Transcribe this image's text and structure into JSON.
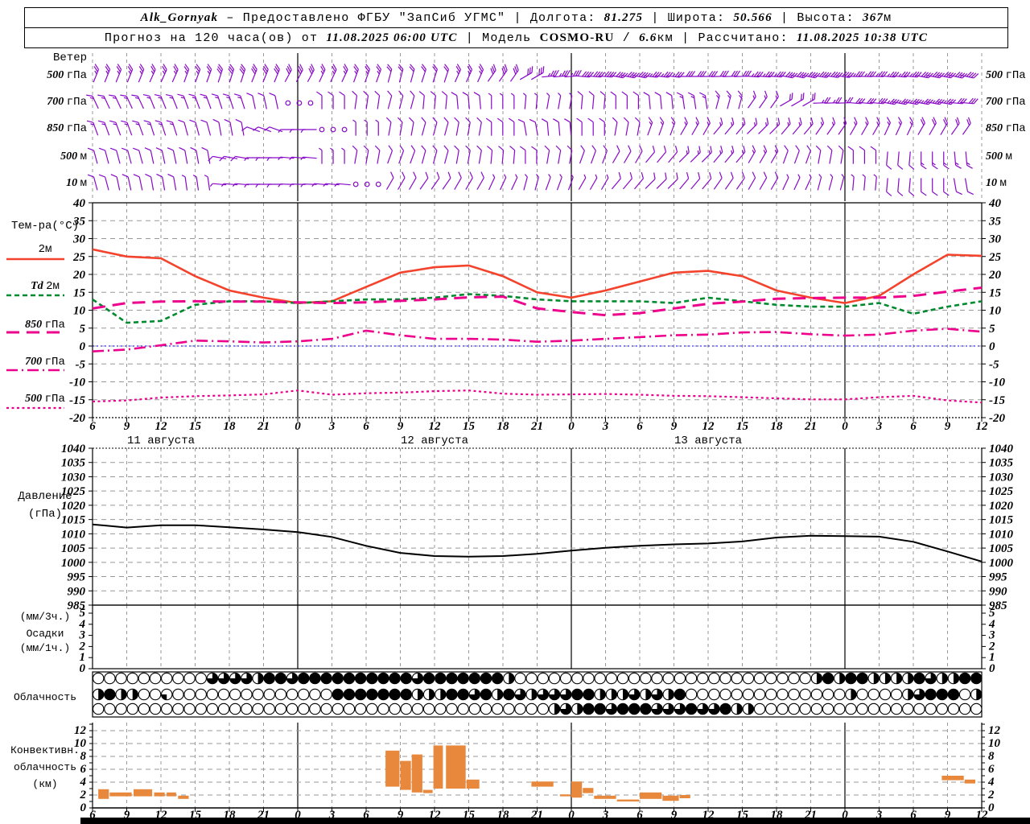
{
  "header": {
    "line1": [
      {
        "t": "Alk_Gornyak",
        "s": "v"
      },
      {
        "t": " – Предоставлено ФГБУ \"ЗапСиб УГМС\" | Долгота: "
      },
      {
        "t": "81.275",
        "s": "v"
      },
      {
        "t": " | Широта: "
      },
      {
        "t": "50.566",
        "s": "v"
      },
      {
        "t": " | Высота: "
      },
      {
        "t": "367",
        "s": "v"
      },
      {
        "t": "м"
      }
    ],
    "line2": [
      {
        "t": "Прогноз на 120 часа(ов) от "
      },
      {
        "t": "11.08.2025 06:00 UTC",
        "s": "v"
      },
      {
        "t": " | Модель "
      },
      {
        "t": "COSMO-RU",
        "s": "b"
      },
      {
        "t": " / "
      },
      {
        "t": "6.6",
        "s": "v"
      },
      {
        "t": "км | Рассчитано: "
      },
      {
        "t": "11.08.2025 10:38 UTC",
        "s": "v"
      }
    ]
  },
  "colors": {
    "wind_barb": "#8808c8",
    "temp_2m": "#f4432c",
    "dewpoint": "#008a2e",
    "magenta": "#ec008c",
    "zero_line": "#0000ff",
    "pressure_line": "#000000",
    "convective_bar": "#e8883c",
    "grid": "#999999"
  },
  "axis": {
    "hour_labels": [
      "6",
      "9",
      "12",
      "15",
      "18",
      "21",
      "0",
      "3",
      "6",
      "9",
      "12",
      "15",
      "18",
      "21",
      "0",
      "3",
      "6",
      "9",
      "12",
      "15",
      "18",
      "21",
      "0",
      "3",
      "6",
      "9",
      "12"
    ],
    "midnight_ticks": [
      6,
      14,
      22
    ],
    "day_labels": [
      {
        "num": "11",
        "word": "августа",
        "tick": 2
      },
      {
        "num": "12",
        "word": "августа",
        "tick": 10
      },
      {
        "num": "13",
        "word": "августа",
        "tick": 18
      }
    ]
  },
  "chart_data": [
    {
      "id": "wind",
      "type": "barbs",
      "title": "Ветер",
      "levels": [
        {
          "num": "500",
          "unit": "гПа",
          "angles": [
            22,
            22,
            24,
            20,
            18,
            22,
            28,
            25,
            20,
            15,
            18,
            24,
            35,
            60,
            85,
            95,
            100,
            96,
            90,
            88,
            94,
            100,
            98,
            92,
            95,
            100,
            102
          ],
          "speeds": [
            5,
            5,
            5,
            5,
            6,
            6,
            6,
            5,
            5,
            4,
            4,
            5,
            6,
            6,
            7,
            8,
            8,
            7,
            6,
            6,
            7,
            8,
            8,
            7,
            7,
            8,
            8
          ]
        },
        {
          "num": "700",
          "unit": "гПа",
          "angles": [
            -25,
            -25,
            -22,
            -20,
            -18,
            -12,
            -8,
            0,
            8,
            15,
            5,
            -5,
            0,
            5,
            10,
            5,
            0,
            -5,
            -8,
            15,
            35,
            60,
            88,
            95,
            100,
            100,
            95
          ],
          "speeds": [
            3,
            3,
            3,
            3,
            3,
            2,
            0,
            2,
            2,
            2,
            2,
            2,
            1,
            1,
            1,
            2,
            2,
            2,
            3,
            3,
            3,
            4,
            5,
            6,
            7,
            7,
            6
          ]
        },
        {
          "num": "850",
          "unit": "гПа",
          "angles": [
            -20,
            -20,
            -18,
            -15,
            -10,
            -70,
            -90,
            -90,
            0,
            10,
            15,
            10,
            0,
            -10,
            -5,
            0,
            10,
            20,
            30,
            40,
            45,
            40,
            35,
            30,
            25,
            30,
            35
          ],
          "speeds": [
            3,
            3,
            3,
            2,
            2,
            2,
            1,
            0,
            1,
            2,
            2,
            2,
            2,
            2,
            2,
            2,
            2,
            3,
            3,
            3,
            3,
            3,
            3,
            3,
            3,
            4,
            4
          ]
        },
        {
          "num": "500",
          "unit": "м",
          "angles": [
            -15,
            -15,
            -12,
            -10,
            -80,
            -90,
            -85,
            0,
            10,
            20,
            15,
            10,
            5,
            0,
            10,
            20,
            30,
            40,
            45,
            40,
            30,
            20,
            10,
            0,
            185,
            180,
            175
          ],
          "speeds": [
            2,
            2,
            2,
            2,
            2,
            1,
            1,
            1,
            2,
            2,
            2,
            2,
            2,
            2,
            2,
            2,
            2,
            2,
            3,
            3,
            3,
            2,
            2,
            2,
            2,
            3,
            3
          ]
        },
        {
          "num": "10",
          "unit": "м",
          "angles": [
            -15,
            -12,
            -10,
            -8,
            -85,
            -90,
            -88,
            -85,
            20,
            30,
            35,
            30,
            25,
            15,
            20,
            30,
            40,
            45,
            40,
            35,
            30,
            25,
            15,
            5,
            185,
            180,
            170
          ],
          "speeds": [
            2,
            2,
            2,
            1,
            1,
            1,
            1,
            1,
            0,
            2,
            2,
            2,
            1,
            1,
            1,
            1,
            2,
            2,
            2,
            2,
            2,
            1,
            1,
            1,
            2,
            2,
            2
          ]
        }
      ]
    },
    {
      "id": "temperature",
      "type": "line",
      "ylabel": "Тем-ра(°C)",
      "ylim": [
        -20,
        40
      ],
      "ytick_step": 5,
      "zero_line": 0,
      "legend": [
        {
          "label": "2м"
        },
        {
          "pre": "Td",
          "label": "2м"
        },
        {
          "num": "850",
          "unit": "гПа"
        },
        {
          "num": "700",
          "unit": "гПа"
        },
        {
          "num": "500",
          "unit": "гПа"
        }
      ],
      "series": [
        {
          "name": "2м",
          "color": "#f4432c",
          "dash": "",
          "width": 2.6,
          "values": [
            27,
            25,
            24.5,
            19.5,
            15.5,
            13.5,
            12,
            12.5,
            16.5,
            20.5,
            22,
            22.5,
            19.5,
            15,
            13.5,
            15.5,
            18,
            20.5,
            21,
            19.5,
            15.5,
            13.5,
            12,
            14,
            20,
            25.5,
            25.2
          ]
        },
        {
          "name": "Td 2м",
          "color": "#008a2e",
          "dash": "6,4",
          "width": 2.6,
          "values": [
            13,
            6.5,
            7,
            11.5,
            12.5,
            12.5,
            12,
            12.5,
            13,
            13,
            13.5,
            14.5,
            14,
            13,
            12.5,
            12.5,
            12.5,
            12,
            13.5,
            12.5,
            11.5,
            11,
            11,
            12,
            9,
            11,
            12.5
          ]
        },
        {
          "name": "850 гПа",
          "color": "#ec008c",
          "dash": "16,9",
          "width": 3,
          "values": [
            10.5,
            12,
            12.4,
            12.5,
            12.4,
            12.4,
            12.2,
            12,
            12.2,
            12.6,
            13,
            13.6,
            13.8,
            10.5,
            9.5,
            8.6,
            9.2,
            10.5,
            11.8,
            12.4,
            13.2,
            13.4,
            13.5,
            13.5,
            14,
            15.2,
            16.3
          ]
        },
        {
          "name": "700 гПа",
          "color": "#ec008c",
          "dash": "14,5,2,5",
          "width": 2.6,
          "values": [
            -1.5,
            -1,
            0.2,
            1.5,
            1.3,
            1,
            1.3,
            2,
            4.3,
            3,
            2,
            2,
            1.8,
            1.2,
            1.5,
            2,
            2.5,
            3,
            3.2,
            3.8,
            3.9,
            3.3,
            2.9,
            3.2,
            4.3,
            4.8,
            4
          ]
        },
        {
          "name": "500 гПа",
          "color": "#ec008c",
          "dash": "3,3.5",
          "width": 2.2,
          "values": [
            -15.5,
            -15.2,
            -14.4,
            -14,
            -13.8,
            -13.5,
            -12.4,
            -13.6,
            -13.2,
            -13,
            -12.6,
            -12.4,
            -13.3,
            -13.6,
            -13.5,
            -13.4,
            -13.6,
            -13.9,
            -14,
            -14.3,
            -14.6,
            -14.9,
            -14.9,
            -14.3,
            -13.9,
            -15.2,
            -15.8
          ]
        }
      ]
    },
    {
      "id": "pressure",
      "type": "line",
      "title_lines": [
        "Давление",
        "(гПа)"
      ],
      "ylim": [
        985,
        1040
      ],
      "ytick_step": 5,
      "color": "#000000",
      "values": [
        1013.3,
        1012.2,
        1013,
        1013,
        1012.3,
        1011.5,
        1010.6,
        1008.9,
        1005.8,
        1003.3,
        1002.2,
        1002,
        1002.2,
        1003,
        1004.1,
        1005.1,
        1005.8,
        1006.3,
        1006.6,
        1007.3,
        1008.7,
        1009.3,
        1009.2,
        1009,
        1007.2,
        1003.8,
        1000.3
      ]
    },
    {
      "id": "precipitation",
      "type": "bar",
      "title_lines": [
        "(мм/3ч.)",
        "Осадки",
        "(мм/1ч.)"
      ],
      "ylim": [
        0,
        5
      ],
      "values": [
        0,
        0,
        0,
        0,
        0,
        0,
        0,
        0,
        0,
        0,
        0,
        0,
        0,
        0,
        0,
        0,
        0,
        0,
        0,
        0,
        0,
        0,
        0,
        0,
        0,
        0,
        0
      ]
    },
    {
      "id": "cloudiness",
      "type": "heatmap",
      "title": "Облачность",
      "value_meaning": "fraction of circle filled, hourly symbols, 0=clear 1=overcast",
      "rows": [
        [
          0,
          0,
          0,
          0,
          0,
          0,
          0,
          0,
          0,
          0,
          0.75,
          0.75,
          0.75,
          0.75,
          0.5,
          1,
          1,
          0.75,
          1,
          1,
          1,
          1,
          1,
          1,
          1,
          1,
          1,
          1,
          0.75,
          1,
          1,
          1,
          1,
          1,
          1,
          1,
          0.5,
          0,
          0,
          0,
          0,
          0,
          0,
          0,
          0,
          0,
          0,
          0,
          0,
          0,
          0,
          0,
          0,
          0,
          0,
          0,
          0,
          0,
          0,
          0,
          0,
          0,
          0,
          0.5,
          1,
          0.5,
          1,
          1,
          0.5,
          0.5,
          0.5,
          0.5,
          1,
          0.75,
          0.5,
          0.5,
          1,
          1
        ],
        [
          0.5,
          1,
          0.5,
          0.5,
          0,
          0,
          0.25,
          0,
          0,
          0,
          0,
          0,
          0,
          0,
          0,
          0,
          0,
          0,
          0,
          0,
          0,
          1,
          1,
          1,
          1,
          1,
          1,
          1,
          0.5,
          0.5,
          0.5,
          1,
          1,
          0.75,
          1,
          0.5,
          1,
          0.75,
          0.5,
          0.75,
          0.75,
          0.75,
          1,
          1,
          0.5,
          0.5,
          0.5,
          0.75,
          0.5,
          0.75,
          0.5,
          1,
          0,
          0,
          0,
          0,
          0,
          0,
          0,
          0,
          0,
          0,
          0,
          0,
          0,
          0,
          0.5,
          0,
          0,
          0,
          0,
          0.5,
          0.75,
          1,
          1,
          1,
          0,
          0.5
        ],
        [
          0,
          0,
          0,
          0,
          0,
          0,
          0,
          0,
          0,
          0,
          0,
          0,
          0,
          0,
          0,
          0,
          0,
          0,
          0,
          0,
          0,
          0,
          0,
          0,
          0,
          0,
          0,
          0,
          0,
          0,
          0,
          0,
          0,
          0,
          0,
          0,
          0,
          0,
          0,
          0,
          0.5,
          0.75,
          0.5,
          1,
          1,
          0.75,
          1,
          1,
          1,
          0.75,
          0.75,
          0.75,
          1,
          0.75,
          0.75,
          1,
          0.5,
          0.5,
          0,
          0,
          0,
          0,
          0,
          0,
          0,
          0,
          0,
          0,
          0,
          0,
          0,
          0,
          0,
          0,
          0,
          0,
          0,
          0
        ]
      ]
    },
    {
      "id": "convective",
      "type": "bar",
      "title_lines": [
        "Конвективн.",
        "облачность",
        "(км)"
      ],
      "ylim": [
        0,
        13
      ],
      "ytick_step": 2,
      "bars": [
        {
          "h": 0.5,
          "w": 1,
          "base": 1.4,
          "top": 2.9
        },
        {
          "h": 1.5,
          "w": 2,
          "base": 1.8,
          "top": 2.4
        },
        {
          "h": 3.6,
          "w": 1.7,
          "base": 1.8,
          "top": 2.9
        },
        {
          "h": 5.4,
          "w": 1,
          "base": 1.8,
          "top": 2.4
        },
        {
          "h": 6.5,
          "w": 0.9,
          "base": 1.8,
          "top": 2.4
        },
        {
          "h": 7.5,
          "w": 1,
          "base": 1.4,
          "top": 1.9
        },
        {
          "h": 25.7,
          "w": 1.3,
          "base": 3.3,
          "top": 8.9
        },
        {
          "h": 27,
          "w": 1,
          "base": 2.8,
          "top": 7.3
        },
        {
          "h": 28,
          "w": 1,
          "base": 2.4,
          "top": 8.3
        },
        {
          "h": 29,
          "w": 0.9,
          "base": 2.3,
          "top": 2.8
        },
        {
          "h": 29.9,
          "w": 0.9,
          "base": 3.0,
          "top": 9.7
        },
        {
          "h": 31,
          "w": 1.8,
          "base": 3.0,
          "top": 9.7
        },
        {
          "h": 32.8,
          "w": 1.2,
          "base": 3.0,
          "top": 4.4
        },
        {
          "h": 38.5,
          "w": 2,
          "base": 3.3,
          "top": 4.1
        },
        {
          "h": 41,
          "w": 1,
          "base": 1.8,
          "top": 2.1
        },
        {
          "h": 42,
          "w": 1,
          "base": 1.6,
          "top": 4.1
        },
        {
          "h": 43,
          "w": 1,
          "base": 2.3,
          "top": 3.1
        },
        {
          "h": 44,
          "w": 2,
          "base": 1.4,
          "top": 1.9
        },
        {
          "h": 46,
          "w": 2,
          "base": 1.0,
          "top": 1.3
        },
        {
          "h": 48,
          "w": 2,
          "base": 1.4,
          "top": 2.4
        },
        {
          "h": 50,
          "w": 1.5,
          "base": 1.1,
          "top": 1.9
        },
        {
          "h": 51.5,
          "w": 1,
          "base": 1.5,
          "top": 2.0
        },
        {
          "h": 74.5,
          "w": 2,
          "base": 4.3,
          "top": 5.0
        },
        {
          "h": 76.5,
          "w": 1,
          "base": 3.8,
          "top": 4.4
        }
      ]
    }
  ]
}
